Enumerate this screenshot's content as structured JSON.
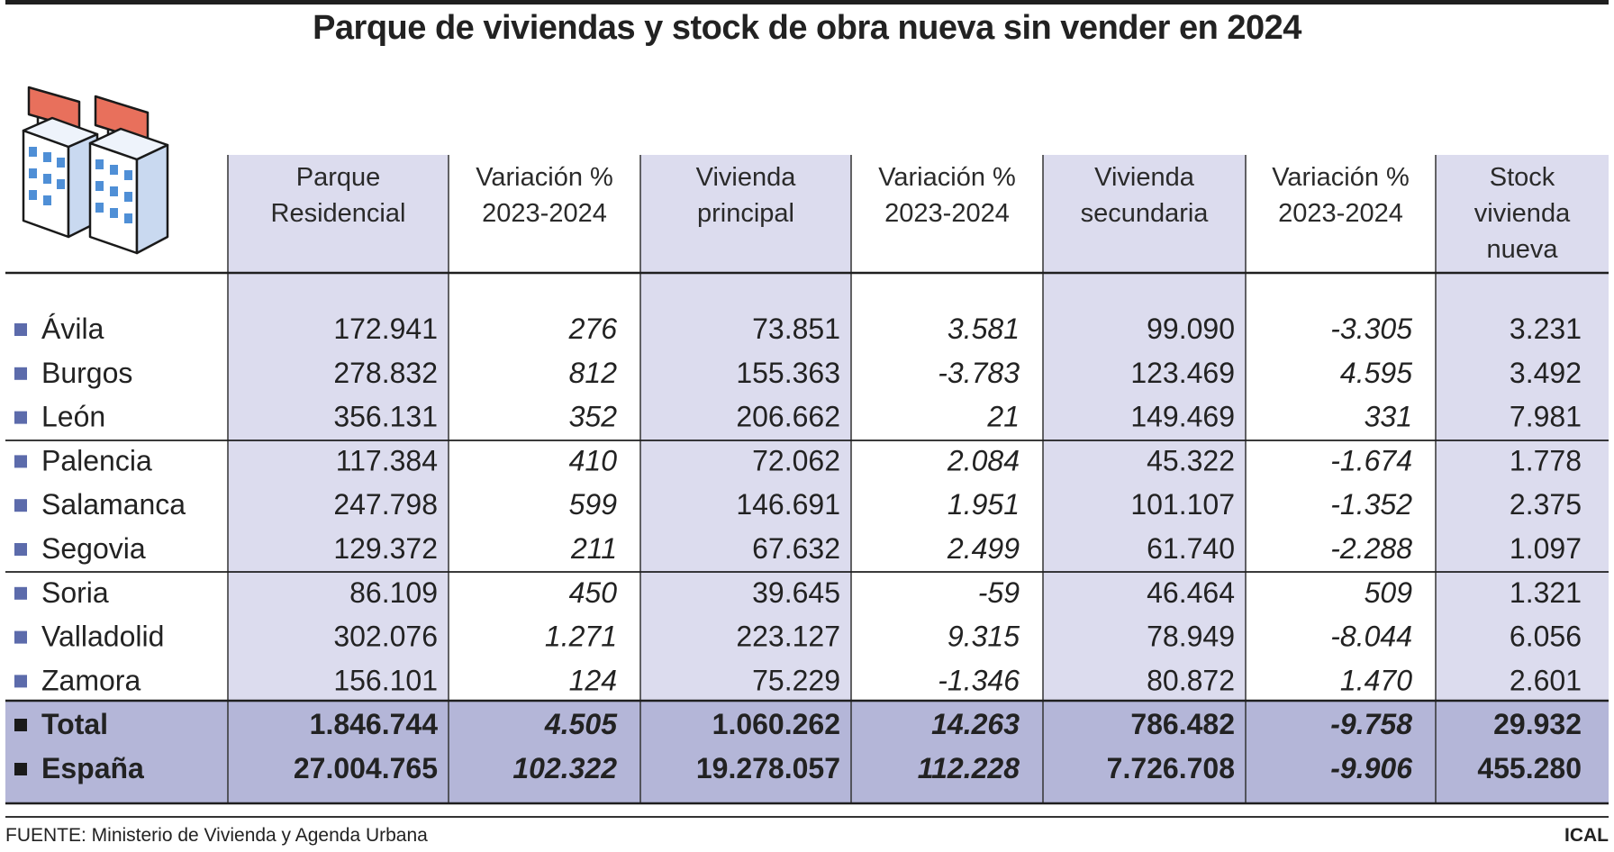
{
  "header": {
    "title": "Parque de viviendas y stock de obra nueva sin vender en 2024"
  },
  "footer": {
    "source": "FUENTE: Ministerio de Vivienda y Agenda Urbana",
    "credit": "ICAL"
  },
  "colors": {
    "shaded_column": "#dcdcee",
    "total_band": "#b4b6d8",
    "bullet": "#5c6bab",
    "bullet_total": "#1a1a1a",
    "rule": "#1f1f1f",
    "sign_red": "#e8705c",
    "window_blue": "#4f8fd6"
  },
  "icon": "apartment-buildings-icon",
  "chart_data": {
    "type": "table",
    "columns": [
      [
        "Parque",
        "Residencial"
      ],
      [
        "Variación %",
        "2023-2024"
      ],
      [
        "Vivienda",
        "principal"
      ],
      [
        "Variación %",
        "2023-2024"
      ],
      [
        "Vivienda",
        "secundaria"
      ],
      [
        "Variación %",
        "2023-2024"
      ],
      [
        "Stock",
        "vivienda",
        "nueva"
      ]
    ],
    "rows": [
      {
        "name": "Ávila",
        "values": [
          "172.941",
          "276",
          "73.851",
          "3.581",
          "99.090",
          "-3.305",
          "3.231"
        ]
      },
      {
        "name": "Burgos",
        "values": [
          "278.832",
          "812",
          "155.363",
          "-3.783",
          "123.469",
          "4.595",
          "3.492"
        ]
      },
      {
        "name": "León",
        "values": [
          "356.131",
          "352",
          "206.662",
          "21",
          "149.469",
          "331",
          "7.981"
        ]
      },
      {
        "name": "Palencia",
        "values": [
          "117.384",
          "410",
          "72.062",
          "2.084",
          "45.322",
          "-1.674",
          "1.778"
        ]
      },
      {
        "name": "Salamanca",
        "values": [
          "247.798",
          "599",
          "146.691",
          "1.951",
          "101.107",
          "-1.352",
          "2.375"
        ]
      },
      {
        "name": "Segovia",
        "values": [
          "129.372",
          "211",
          "67.632",
          "2.499",
          "61.740",
          "-2.288",
          "1.097"
        ]
      },
      {
        "name": "Soria",
        "values": [
          "86.109",
          "450",
          "39.645",
          "-59",
          "46.464",
          "509",
          "1.321"
        ]
      },
      {
        "name": "Valladolid",
        "values": [
          "302.076",
          "1.271",
          "223.127",
          "9.315",
          "78.949",
          "-8.044",
          "6.056"
        ]
      },
      {
        "name": "Zamora",
        "values": [
          "156.101",
          "124",
          "75.229",
          "-1.346",
          "80.872",
          "1.470",
          "2.601"
        ]
      }
    ],
    "totals": [
      {
        "name": "Total",
        "values": [
          "1.846.744",
          "4.505",
          "1.060.262",
          "14.263",
          "786.482",
          "-9.758",
          "29.932"
        ]
      },
      {
        "name": "España",
        "values": [
          "27.004.765",
          "102.322",
          "19.278.057",
          "112.228",
          "7.726.708",
          "-9.906",
          "455.280"
        ]
      }
    ],
    "italic_columns": [
      1,
      3,
      5
    ],
    "shaded_columns": [
      0,
      2,
      4,
      6
    ]
  }
}
